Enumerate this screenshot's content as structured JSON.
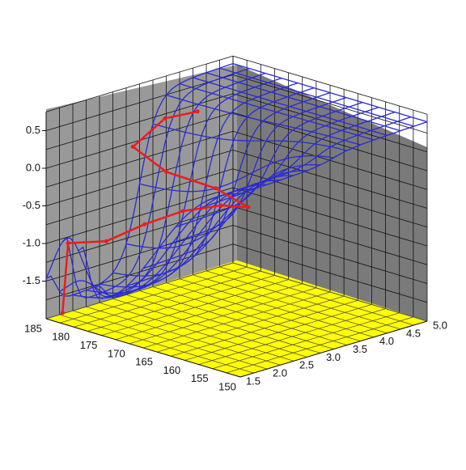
{
  "chart_data": {
    "type": "surface-3d",
    "title": "",
    "xlabel": "",
    "ylabel": "",
    "zlabel": "",
    "x_axis": {
      "ticks": [
        "185",
        "180",
        "175",
        "170",
        "165",
        "160",
        "155",
        "150"
      ],
      "range": [
        150,
        185
      ]
    },
    "y_axis": {
      "ticks": [
        "1.5",
        "2.0",
        "2.5",
        "3.0",
        "3.5",
        "4.0",
        "4.5",
        "5.0"
      ],
      "range": [
        1.5,
        5.0
      ]
    },
    "z_axis": {
      "ticks": [
        "0.5",
        "0.0",
        "-0.5",
        "-1.0",
        "-1.5"
      ],
      "range": [
        -2.0,
        0.75
      ]
    },
    "grid": true,
    "colors": {
      "back_wall": "#999999",
      "right_wall": "#7a7a7a",
      "wall_grid": "#111111",
      "floor": "#ffff00",
      "floor_grid": "#555555",
      "surface_mesh": "#2a2ad6",
      "highlight_path": "#ee1c1c"
    },
    "surface": {
      "description_of_shape": "value near 0.6 over most of the domain, dropping steeply toward -2.0 at low y and high x",
      "x_samples": [
        150,
        155,
        160,
        165,
        170,
        175,
        180,
        185
      ],
      "y_samples": [
        1.5,
        2.0,
        2.5,
        3.0,
        3.5,
        4.0,
        4.5,
        5.0
      ]
    },
    "highlight_path": [
      {
        "x": 183,
        "y": 1.6,
        "z": -1.9
      },
      {
        "x": 182,
        "y": 1.6,
        "z": -0.95
      },
      {
        "x": 178,
        "y": 1.9,
        "z": -0.9
      },
      {
        "x": 174,
        "y": 2.2,
        "z": -0.65
      },
      {
        "x": 170,
        "y": 2.5,
        "z": -0.45
      },
      {
        "x": 166,
        "y": 2.8,
        "z": -0.35
      },
      {
        "x": 163,
        "y": 3.0,
        "z": -0.35
      },
      {
        "x": 166,
        "y": 2.7,
        "z": -0.1
      },
      {
        "x": 172,
        "y": 2.4,
        "z": 0.05
      },
      {
        "x": 178,
        "y": 2.4,
        "z": 0.25
      },
      {
        "x": 178,
        "y": 3.0,
        "z": 0.5
      },
      {
        "x": 176,
        "y": 3.4,
        "z": 0.55
      }
    ]
  }
}
